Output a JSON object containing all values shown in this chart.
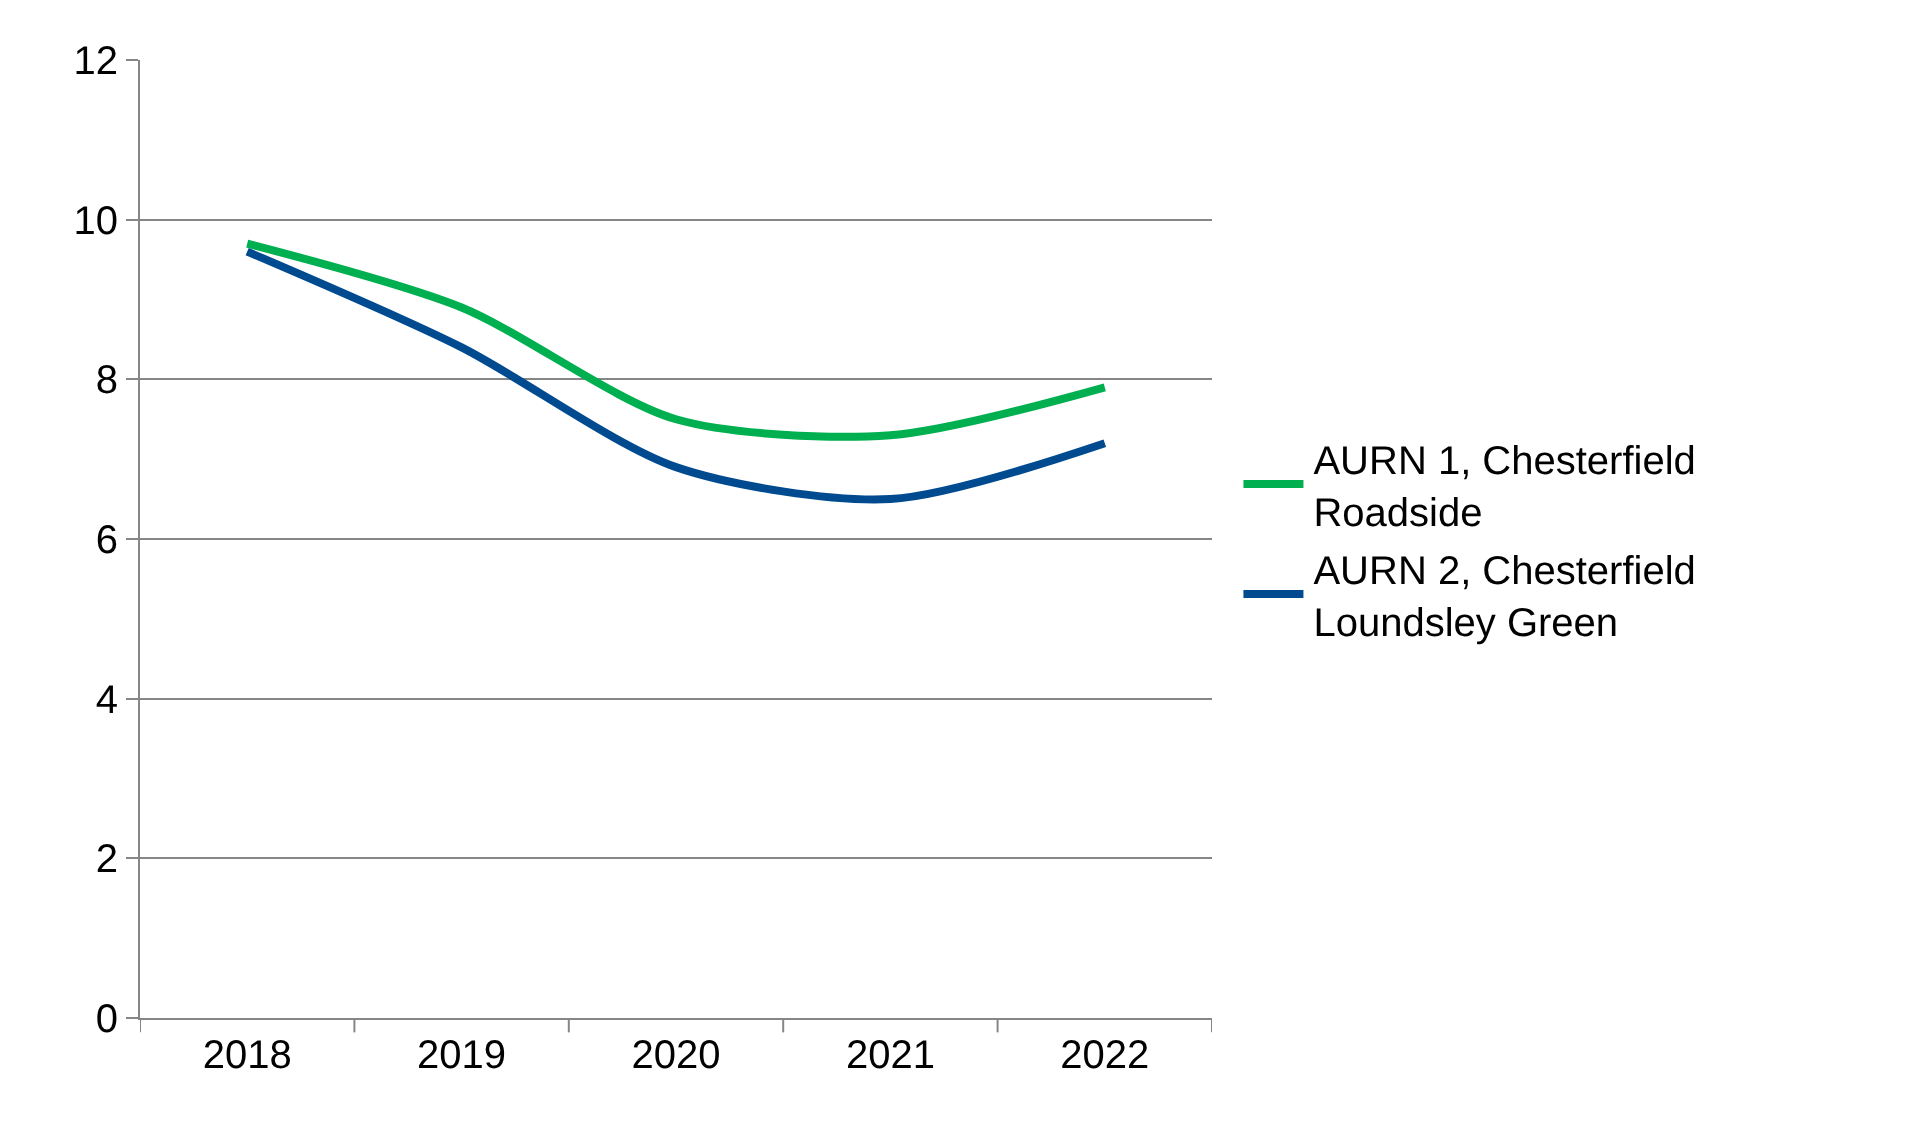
{
  "chart_data": {
    "type": "line",
    "categories": [
      "2018",
      "2019",
      "2020",
      "2021",
      "2022"
    ],
    "series": [
      {
        "name": "AURN 1, Chesterfield Roadside",
        "color": "#00b050",
        "values": [
          9.7,
          8.9,
          7.5,
          7.3,
          7.9
        ]
      },
      {
        "name": "AURN 2, Chesterfield Loundsley Green",
        "color": "#004a8f",
        "values": [
          9.6,
          8.4,
          6.9,
          6.5,
          7.2
        ]
      }
    ],
    "ylim": [
      0,
      12
    ],
    "yticks": [
      0,
      2,
      4,
      6,
      8,
      10,
      12
    ],
    "grid": "y",
    "legend": "right",
    "marker": "none",
    "line_style": "solid"
  }
}
